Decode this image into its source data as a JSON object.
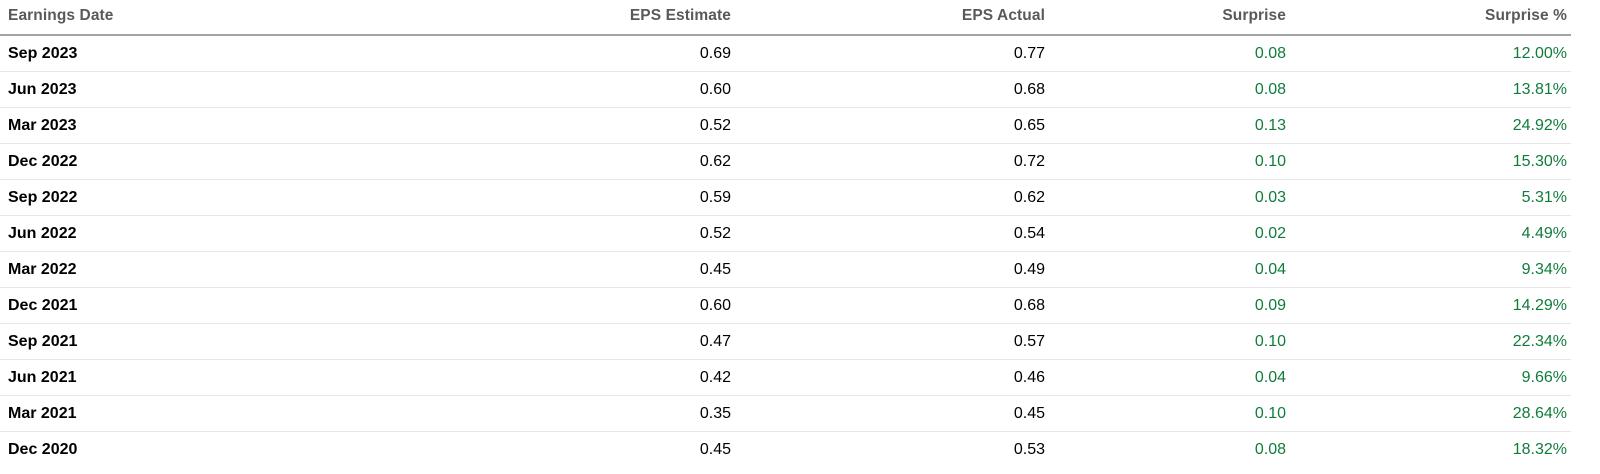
{
  "colors": {
    "positive": "#107c3c",
    "header_text": "#595959",
    "header_rule": "#a3a3a3",
    "row_divider": "#e7e7e7",
    "body_text": "#000000",
    "background": "#ffffff"
  },
  "table": {
    "row_keys": [
      "date",
      "eps_estimate",
      "eps_actual",
      "surprise",
      "surprise_pct"
    ],
    "columns": [
      {
        "label": "Earnings Date",
        "align": "left"
      },
      {
        "label": "EPS Estimate",
        "align": "right"
      },
      {
        "label": "EPS Actual",
        "align": "right"
      },
      {
        "label": "Surprise",
        "align": "right"
      },
      {
        "label": "Surprise %",
        "align": "right"
      }
    ],
    "rows": [
      {
        "date": "Sep 2023",
        "eps_estimate": "0.69",
        "eps_actual": "0.77",
        "surprise": "0.08",
        "surprise_pct": "12.00%"
      },
      {
        "date": "Jun 2023",
        "eps_estimate": "0.60",
        "eps_actual": "0.68",
        "surprise": "0.08",
        "surprise_pct": "13.81%"
      },
      {
        "date": "Mar 2023",
        "eps_estimate": "0.52",
        "eps_actual": "0.65",
        "surprise": "0.13",
        "surprise_pct": "24.92%"
      },
      {
        "date": "Dec 2022",
        "eps_estimate": "0.62",
        "eps_actual": "0.72",
        "surprise": "0.10",
        "surprise_pct": "15.30%"
      },
      {
        "date": "Sep 2022",
        "eps_estimate": "0.59",
        "eps_actual": "0.62",
        "surprise": "0.03",
        "surprise_pct": "5.31%"
      },
      {
        "date": "Jun 2022",
        "eps_estimate": "0.52",
        "eps_actual": "0.54",
        "surprise": "0.02",
        "surprise_pct": "4.49%"
      },
      {
        "date": "Mar 2022",
        "eps_estimate": "0.45",
        "eps_actual": "0.49",
        "surprise": "0.04",
        "surprise_pct": "9.34%"
      },
      {
        "date": "Dec 2021",
        "eps_estimate": "0.60",
        "eps_actual": "0.68",
        "surprise": "0.09",
        "surprise_pct": "14.29%"
      },
      {
        "date": "Sep 2021",
        "eps_estimate": "0.47",
        "eps_actual": "0.57",
        "surprise": "0.10",
        "surprise_pct": "22.34%"
      },
      {
        "date": "Jun 2021",
        "eps_estimate": "0.42",
        "eps_actual": "0.46",
        "surprise": "0.04",
        "surprise_pct": "9.66%"
      },
      {
        "date": "Mar 2021",
        "eps_estimate": "0.35",
        "eps_actual": "0.45",
        "surprise": "0.10",
        "surprise_pct": "28.64%"
      },
      {
        "date": "Dec 2020",
        "eps_estimate": "0.45",
        "eps_actual": "0.53",
        "surprise": "0.08",
        "surprise_pct": "18.32%"
      }
    ]
  }
}
